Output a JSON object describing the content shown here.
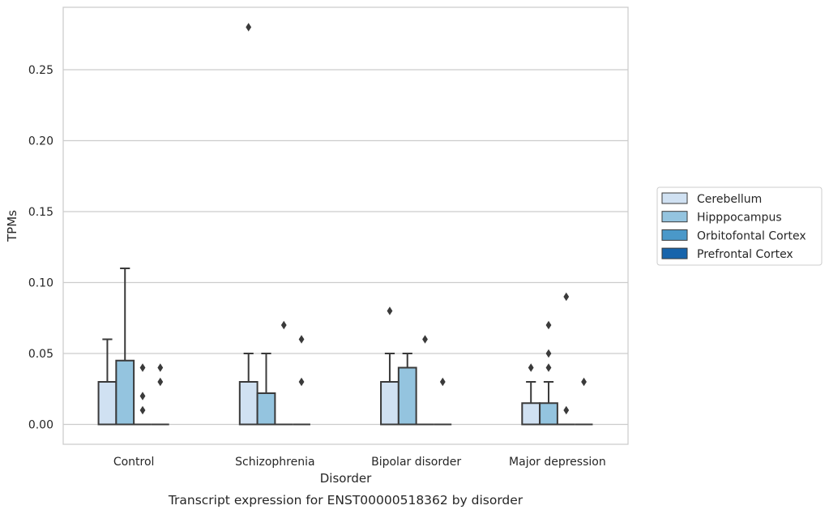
{
  "caption": "Transcript expression for ENST00000518362 by disorder",
  "chart_data": {
    "type": "box",
    "xlabel": "Disorder",
    "ylabel": "TPMs",
    "categories": [
      "Control",
      "Schizophrenia",
      "Bipolar disorder",
      "Major depression"
    ],
    "ylim": [
      -0.014,
      0.294
    ],
    "yticks": [
      0.0,
      0.05,
      0.1,
      0.15,
      0.2,
      0.25
    ],
    "ytick_labels": [
      "0.00",
      "0.05",
      "0.10",
      "0.15",
      "0.20",
      "0.25"
    ],
    "grid": "horizontal",
    "legend_placement": "right",
    "series": [
      {
        "name": "Cerebellum",
        "color": "#d0e1f2",
        "boxes": [
          {
            "q1": 0.0,
            "median": 0.0,
            "q3": 0.03,
            "whisker_low": 0.0,
            "whisker_high": 0.06,
            "outliers": []
          },
          {
            "q1": 0.0,
            "median": 0.0,
            "q3": 0.03,
            "whisker_low": 0.0,
            "whisker_high": 0.05,
            "outliers": [
              0.28
            ]
          },
          {
            "q1": 0.0,
            "median": 0.0,
            "q3": 0.03,
            "whisker_low": 0.0,
            "whisker_high": 0.05,
            "outliers": [
              0.08
            ]
          },
          {
            "q1": 0.0,
            "median": 0.0,
            "q3": 0.015,
            "whisker_low": 0.0,
            "whisker_high": 0.03,
            "outliers": [
              0.04
            ]
          }
        ]
      },
      {
        "name": "Hipppocampus",
        "color": "#94c4df",
        "boxes": [
          {
            "q1": 0.0,
            "median": 0.0,
            "q3": 0.045,
            "whisker_low": 0.0,
            "whisker_high": 0.11,
            "outliers": []
          },
          {
            "q1": 0.0,
            "median": 0.0,
            "q3": 0.022,
            "whisker_low": 0.0,
            "whisker_high": 0.05,
            "outliers": []
          },
          {
            "q1": 0.0,
            "median": 0.0,
            "q3": 0.04,
            "whisker_low": 0.0,
            "whisker_high": 0.05,
            "outliers": []
          },
          {
            "q1": 0.0,
            "median": 0.0,
            "q3": 0.015,
            "whisker_low": 0.0,
            "whisker_high": 0.03,
            "outliers": [
              0.04,
              0.05,
              0.07
            ]
          }
        ]
      },
      {
        "name": "Orbitofontal Cortex",
        "color": "#4a98c9",
        "boxes": [
          {
            "q1": 0.0,
            "median": 0.0,
            "q3": 0.0,
            "whisker_low": 0.0,
            "whisker_high": 0.0,
            "outliers": [
              0.01,
              0.02,
              0.04
            ]
          },
          {
            "q1": 0.0,
            "median": 0.0,
            "q3": 0.0,
            "whisker_low": 0.0,
            "whisker_high": 0.0,
            "outliers": [
              0.07
            ]
          },
          {
            "q1": 0.0,
            "median": 0.0,
            "q3": 0.0,
            "whisker_low": 0.0,
            "whisker_high": 0.0,
            "outliers": [
              0.06
            ]
          },
          {
            "q1": 0.0,
            "median": 0.0,
            "q3": 0.0,
            "whisker_low": 0.0,
            "whisker_high": 0.0,
            "outliers": [
              0.01,
              0.09
            ]
          }
        ]
      },
      {
        "name": "Prefrontal Cortex",
        "color": "#1764ab",
        "boxes": [
          {
            "q1": 0.0,
            "median": 0.0,
            "q3": 0.0,
            "whisker_low": 0.0,
            "whisker_high": 0.0,
            "outliers": [
              0.03,
              0.04
            ]
          },
          {
            "q1": 0.0,
            "median": 0.0,
            "q3": 0.0,
            "whisker_low": 0.0,
            "whisker_high": 0.0,
            "outliers": [
              0.03,
              0.06
            ]
          },
          {
            "q1": 0.0,
            "median": 0.0,
            "q3": 0.0,
            "whisker_low": 0.0,
            "whisker_high": 0.0,
            "outliers": [
              0.03
            ]
          },
          {
            "q1": 0.0,
            "median": 0.0,
            "q3": 0.0,
            "whisker_low": 0.0,
            "whisker_high": 0.0,
            "outliers": [
              0.03
            ]
          }
        ]
      }
    ]
  }
}
